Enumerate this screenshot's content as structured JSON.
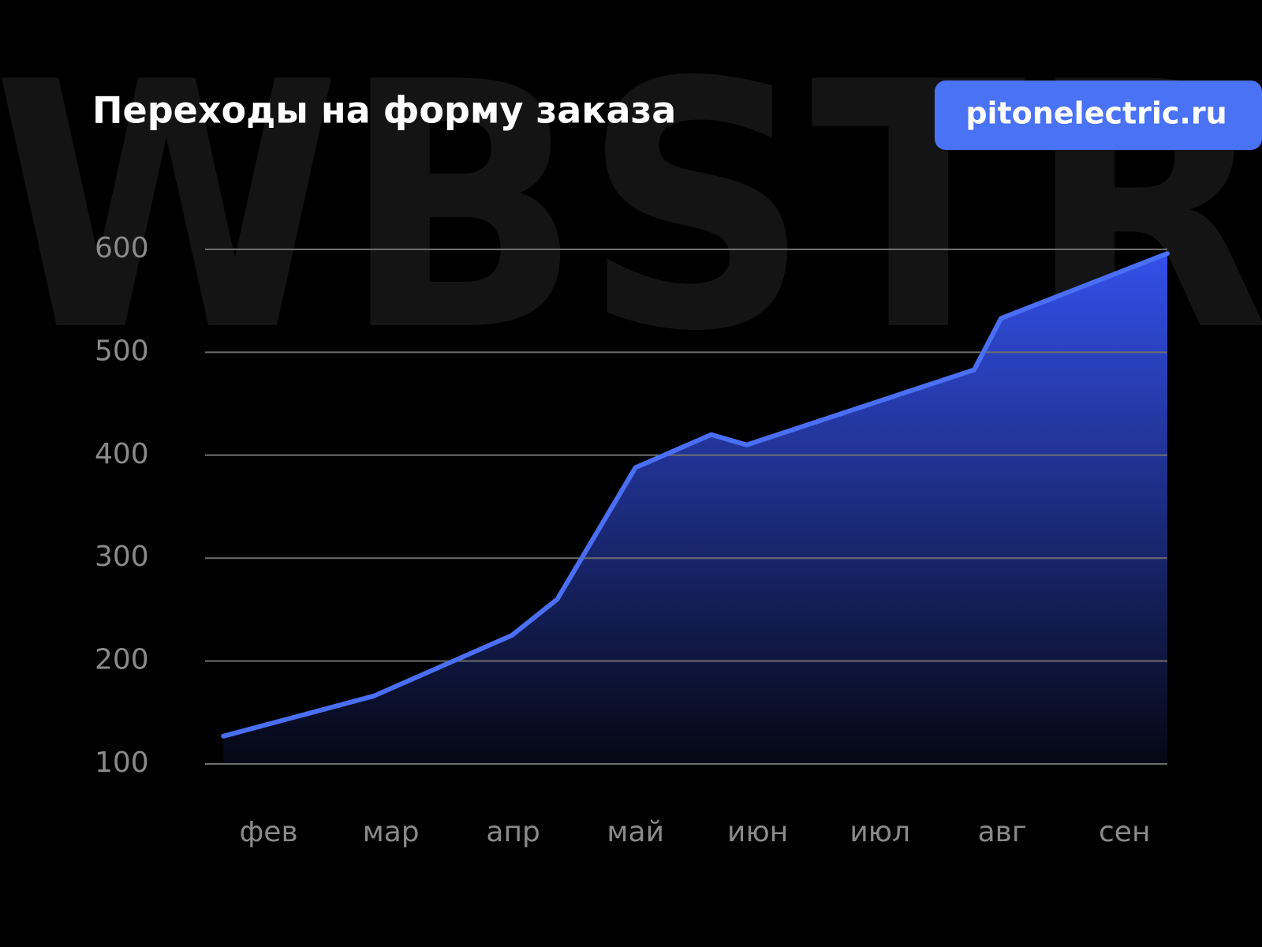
{
  "watermark": "WBSTR",
  "badge": "pitonelectric.ru",
  "chart_data": {
    "type": "area",
    "title": "Переходы на форму заказа",
    "x": [
      1.63,
      2.86,
      3.99,
      4.36,
      5.0,
      5.62,
      5.91,
      7.77,
      7.99,
      9.35
    ],
    "series": [
      {
        "color": "#4a6ff5",
        "values": [
          127,
          166,
          225,
          260,
          388,
          420,
          410,
          483,
          533,
          596
        ]
      }
    ],
    "xlim": [
      1.48,
      9.35
    ],
    "xticks": [
      {
        "value": 2,
        "label": "фев"
      },
      {
        "value": 3,
        "label": "мар"
      },
      {
        "value": 4,
        "label": "апр"
      },
      {
        "value": 5,
        "label": "май"
      },
      {
        "value": 6,
        "label": "июн"
      },
      {
        "value": 7,
        "label": "июл"
      },
      {
        "value": 8,
        "label": "авг"
      },
      {
        "value": 9,
        "label": "сен"
      }
    ],
    "ylim": [
      100,
      600
    ],
    "yticks": [
      100,
      200,
      300,
      400,
      500,
      600
    ],
    "grid": true
  }
}
